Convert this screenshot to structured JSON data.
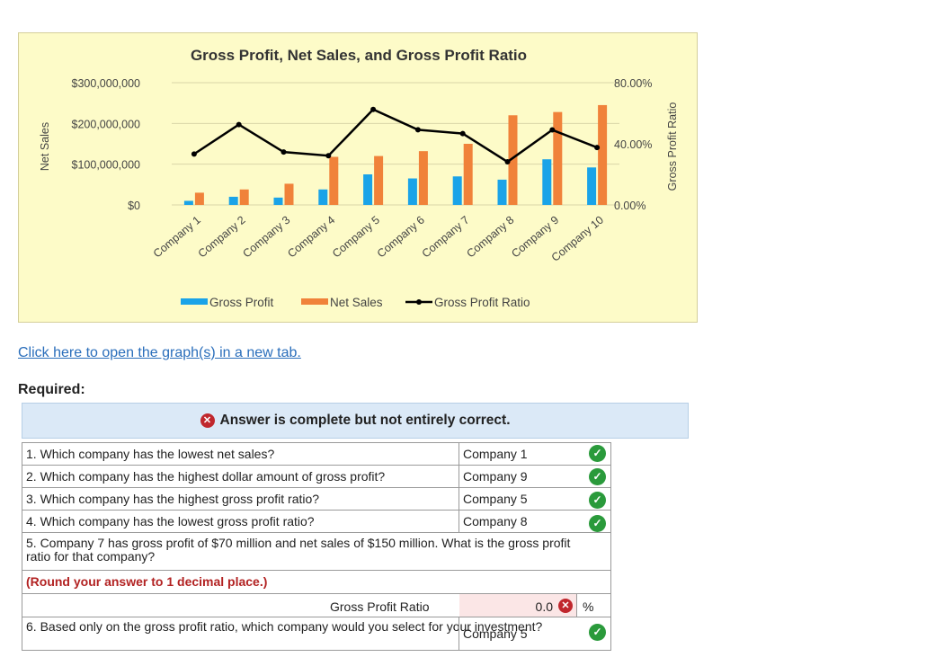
{
  "chart_data": {
    "type": "bar",
    "title": "Gross Profit, Net Sales, and Gross Profit Ratio",
    "categories": [
      "Company 1",
      "Company 2",
      "Company 3",
      "Company 4",
      "Company 5",
      "Company 6",
      "Company 7",
      "Company 8",
      "Company 9",
      "Company 10"
    ],
    "series": [
      {
        "name": "Gross Profit",
        "type": "bar",
        "axis": "left",
        "color": "#1aa3e8",
        "values": [
          10000000,
          20000000,
          18000000,
          38000000,
          75000000,
          65000000,
          70000000,
          62000000,
          112000000,
          92000000
        ]
      },
      {
        "name": "Net Sales",
        "type": "bar",
        "axis": "left",
        "color": "#f0823a",
        "values": [
          30000000,
          38000000,
          52000000,
          118000000,
          120000000,
          132000000,
          150000000,
          220000000,
          228000000,
          245000000
        ]
      },
      {
        "name": "Gross Profit Ratio",
        "type": "line",
        "axis": "right",
        "color": "#000000",
        "values": [
          0.333,
          0.526,
          0.346,
          0.322,
          0.625,
          0.492,
          0.467,
          0.282,
          0.491,
          0.376
        ]
      }
    ],
    "ylabel": "Net Sales",
    "y2label": "Gross Profit Ratio",
    "ylim": [
      0,
      300000000
    ],
    "y2lim": [
      0,
      0.8
    ],
    "yticks": [
      "$0",
      "$100,000,000",
      "$200,000,000",
      "$300,000,000"
    ],
    "y2ticks": [
      "0.00%",
      "40.00%",
      "80.00%"
    ],
    "legend": [
      "Gross Profit",
      "Net Sales",
      "Gross Profit Ratio"
    ],
    "legend_position": "bottom",
    "grid": true
  },
  "link_text": "Click here to open the graph(s) in a new tab.",
  "required_label": "Required:",
  "banner": {
    "icon": "x-circle-icon",
    "text": "Answer is complete but not entirely correct."
  },
  "questions": [
    {
      "q": "1. Which company has the lowest net sales?",
      "a": "Company 1"
    },
    {
      "q": "2. Which company has the highest dollar amount of gross profit?",
      "a": "Company 9"
    },
    {
      "q": "3. Which company has the highest gross profit ratio?",
      "a": "Company 5"
    },
    {
      "q": "4. Which company has the lowest gross profit ratio?",
      "a": "Company 8"
    }
  ],
  "q5": {
    "text": "5. Company 7 has gross profit of $70 million and net sales of $150 million. What is the gross profit ratio for that company?",
    "round_note": "(Round your answer to 1 decimal place.)",
    "label": "Gross Profit Ratio",
    "value": "0.0",
    "unit": "%"
  },
  "q6": {
    "text": "6. Based only on the gross profit ratio, which company would you select for your investment?",
    "a": "Company 5"
  }
}
